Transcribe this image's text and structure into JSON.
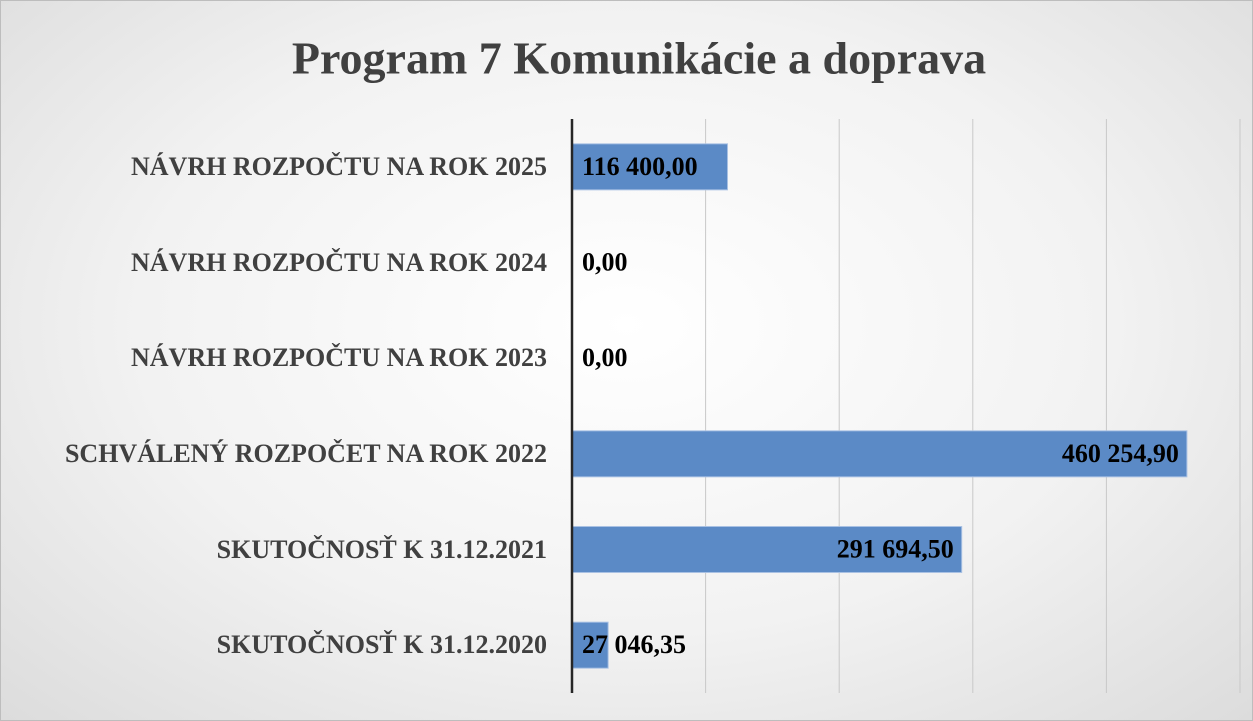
{
  "chart_data": {
    "type": "bar",
    "orientation": "horizontal",
    "title": "Program 7 Komunikácie a doprava",
    "categories": [
      "SKUTOČNOSŤ K 31.12.2020",
      "SKUTOČNOSŤ K 31.12.2021",
      "SCHVÁLENÝ ROZPOČET NA ROK 2022",
      "NÁVRH ROZPOČTU NA ROK 2023",
      "NÁVRH ROZPOČTU NA ROK 2024",
      "NÁVRH ROZPOČTU NA ROK 2025"
    ],
    "values": [
      27046.35,
      291694.5,
      460254.9,
      0,
      0,
      116400
    ],
    "value_labels": [
      "27 046,35",
      "291 694,50",
      "460 254,90",
      "0,00",
      "0,00",
      "116 400,00"
    ],
    "color": "#5b8ac6",
    "xlim": [
      0,
      500000
    ],
    "xticks": [
      0,
      100000,
      200000,
      300000,
      400000,
      500000
    ],
    "grid": true
  }
}
